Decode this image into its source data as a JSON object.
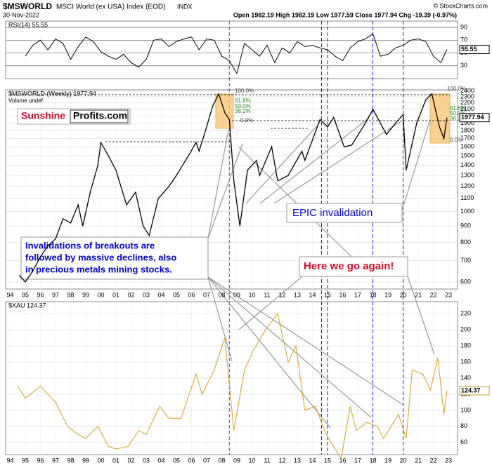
{
  "header": {
    "symbol": "$MSWORLD",
    "name": "MSCI World (ex USA) Index (EOD)",
    "exchange": "INDX",
    "date": "30-Nov-2022",
    "quote": "Open 1982.19 High 1982.19 Low 1977.59 Close 1977.94 Chg -19.39 (-0.97%)",
    "source": "© StockCharts.com"
  },
  "logo": {
    "left": "Sunshine",
    "right": "Profits.com"
  },
  "notes": {
    "invalidations": [
      "Invalidations of breakouts are",
      "followed by massive declines, also",
      "in precious metals mining stocks."
    ],
    "epic": "EPIC invalidation",
    "again": "Here we go again!",
    "fib_labels": [
      "100.0%",
      "61.8%",
      "50.0%",
      "38.2%",
      "0.0%"
    ]
  },
  "chart_data": [
    {
      "type": "line",
      "title": "RSI(14) 55.55",
      "color": "#000000",
      "xlim": [
        1993.7,
        2023.6
      ],
      "ylim": [
        10,
        100
      ],
      "yticks": [
        30,
        50,
        70,
        90
      ],
      "x": [
        1995.0,
        1995.5,
        1996.0,
        1996.5,
        1997.0,
        1997.5,
        1998.0,
        1998.5,
        1999.0,
        1999.5,
        2000.0,
        2000.5,
        2001.0,
        2001.5,
        2002.0,
        2002.5,
        2003.0,
        2003.5,
        2004.0,
        2004.5,
        2005.0,
        2005.5,
        2006.0,
        2006.5,
        2007.0,
        2007.5,
        2008.0,
        2008.5,
        2009.0,
        2009.5,
        2010.0,
        2010.5,
        2011.0,
        2011.5,
        2012.0,
        2012.5,
        2013.0,
        2013.5,
        2014.0,
        2014.5,
        2015.0,
        2015.5,
        2016.0,
        2016.5,
        2017.0,
        2017.5,
        2018.0,
        2018.5,
        2019.0,
        2019.5,
        2020.0,
        2020.5,
        2021.0,
        2021.5,
        2022.0,
        2022.5,
        2022.9
      ],
      "values": [
        45,
        62,
        70,
        55,
        72,
        65,
        40,
        60,
        75,
        68,
        52,
        45,
        40,
        48,
        35,
        28,
        40,
        70,
        72,
        60,
        68,
        72,
        75,
        55,
        72,
        70,
        45,
        38,
        18,
        65,
        55,
        45,
        62,
        35,
        58,
        50,
        68,
        60,
        62,
        58,
        55,
        45,
        38,
        58,
        68,
        72,
        80,
        45,
        48,
        58,
        62,
        70,
        72,
        68,
        45,
        35,
        55.55
      ]
    },
    {
      "type": "line",
      "title": "$MSWORLD (Weekly) 1977.94",
      "subtitle": "Volume undef",
      "color": "#000000",
      "log_scale": true,
      "xlim": [
        1993.7,
        2023.6
      ],
      "ylim": [
        570,
        2420
      ],
      "yticks": [
        600,
        700,
        800,
        900,
        1000,
        1100,
        1200,
        1300,
        1400,
        1500,
        1600,
        1700,
        1800,
        1900,
        2000,
        2100,
        2200,
        2300,
        2400
      ],
      "xticks": [
        {
          "value": 1994,
          "label": "94"
        },
        {
          "value": 1995,
          "label": "95"
        },
        {
          "value": 1996,
          "label": "96"
        },
        {
          "value": 1997,
          "label": "97"
        },
        {
          "value": 1998,
          "label": "98"
        },
        {
          "value": 1999,
          "label": "99"
        },
        {
          "value": 2000,
          "label": "00"
        },
        {
          "value": 2001,
          "label": "01"
        },
        {
          "value": 2002,
          "label": "02"
        },
        {
          "value": 2003,
          "label": "03"
        },
        {
          "value": 2004,
          "label": "04"
        },
        {
          "value": 2005,
          "label": "05"
        },
        {
          "value": 2006,
          "label": "06"
        },
        {
          "value": 2007,
          "label": "07"
        },
        {
          "value": 2008,
          "label": "08"
        },
        {
          "value": 2009,
          "label": "09"
        },
        {
          "value": 2010,
          "label": "10"
        },
        {
          "value": 2011,
          "label": "11"
        },
        {
          "value": 2012,
          "label": "12"
        },
        {
          "value": 2013,
          "label": "13"
        },
        {
          "value": 2014,
          "label": "14"
        },
        {
          "value": 2015,
          "label": "15"
        },
        {
          "value": 2016,
          "label": "16"
        },
        {
          "value": 2017,
          "label": "17"
        },
        {
          "value": 2018,
          "label": "18"
        },
        {
          "value": 2019,
          "label": "19"
        },
        {
          "value": 2020,
          "label": "20"
        },
        {
          "value": 2021,
          "label": "21"
        },
        {
          "value": 2022,
          "label": "22"
        },
        {
          "value": 2023,
          "label": "23"
        }
      ],
      "event_lines": [
        {
          "x": 2008.5,
          "color": "#9900cc"
        },
        {
          "x": 2014.6,
          "color": "#0000cc"
        },
        {
          "x": 2015.0,
          "color": "#0000cc"
        },
        {
          "x": 2018.0,
          "color": "#0000cc"
        },
        {
          "x": 2020.0,
          "color": "#0000cc"
        }
      ],
      "x": [
        1994.6,
        1995.0,
        1995.5,
        1996.0,
        1996.5,
        1997.0,
        1997.5,
        1998.0,
        1998.5,
        1998.8,
        1999.3,
        1999.8,
        2000.0,
        2000.5,
        2001.0,
        2001.7,
        2002.3,
        2002.8,
        2003.2,
        2003.8,
        2004.5,
        2005.0,
        2005.8,
        2006.3,
        2006.5,
        2007.0,
        2007.4,
        2007.8,
        2008.2,
        2008.5,
        2008.8,
        2009.2,
        2009.7,
        2010.3,
        2010.5,
        2011.3,
        2011.7,
        2012.4,
        2013.3,
        2013.5,
        2014.5,
        2015.0,
        2015.4,
        2016.1,
        2016.6,
        2017.5,
        2018.0,
        2018.9,
        2019.5,
        2020.0,
        2020.2,
        2020.9,
        2021.5,
        2021.9,
        2022.4,
        2022.7,
        2022.9
      ],
      "values": [
        630,
        600,
        650,
        720,
        780,
        820,
        950,
        920,
        1050,
        900,
        1150,
        1400,
        1650,
        1500,
        1350,
        1050,
        1150,
        900,
        840,
        1100,
        1200,
        1300,
        1500,
        1650,
        1550,
        1850,
        2150,
        2350,
        2050,
        1950,
        1250,
        900,
        1350,
        1450,
        1300,
        1600,
        1250,
        1300,
        1550,
        1450,
        1950,
        1850,
        1980,
        1600,
        1620,
        1900,
        2100,
        1750,
        1900,
        2020,
        1350,
        1900,
        2250,
        2350,
        1850,
        1700,
        1977.94
      ]
    },
    {
      "type": "line",
      "title": "$XAU 124.37",
      "color": "#d4a020",
      "xlim": [
        1993.7,
        2023.6
      ],
      "ylim": [
        45,
        235
      ],
      "yticks": [
        60,
        80,
        100,
        120,
        140,
        160,
        180,
        200,
        220
      ],
      "xticks": [
        {
          "value": 1994,
          "label": "94"
        },
        {
          "value": 1995,
          "label": "95"
        },
        {
          "value": 1996,
          "label": "96"
        },
        {
          "value": 1997,
          "label": "97"
        },
        {
          "value": 1998,
          "label": "98"
        },
        {
          "value": 1999,
          "label": "99"
        },
        {
          "value": 2000,
          "label": "00"
        },
        {
          "value": 2001,
          "label": "01"
        },
        {
          "value": 2002,
          "label": "02"
        },
        {
          "value": 2003,
          "label": "03"
        },
        {
          "value": 2004,
          "label": "04"
        },
        {
          "value": 2005,
          "label": "05"
        },
        {
          "value": 2006,
          "label": "06"
        },
        {
          "value": 2007,
          "label": "07"
        },
        {
          "value": 2008,
          "label": "08"
        },
        {
          "value": 2009,
          "label": "09"
        },
        {
          "value": 2010,
          "label": "10"
        },
        {
          "value": 2011,
          "label": "11"
        },
        {
          "value": 2012,
          "label": "12"
        },
        {
          "value": 2013,
          "label": "13"
        },
        {
          "value": 2014,
          "label": "14"
        },
        {
          "value": 2015,
          "label": "15"
        },
        {
          "value": 2016,
          "label": "16"
        },
        {
          "value": 2017,
          "label": "17"
        },
        {
          "value": 2018,
          "label": "18"
        },
        {
          "value": 2019,
          "label": "19"
        },
        {
          "value": 2020,
          "label": "20"
        },
        {
          "value": 2021,
          "label": "21"
        },
        {
          "value": 2022,
          "label": "22"
        },
        {
          "value": 2023,
          "label": "23"
        }
      ],
      "x": [
        1994.5,
        1995.0,
        1996.0,
        1996.5,
        1997.0,
        1997.8,
        1998.5,
        1999.0,
        1999.8,
        2000.5,
        2001.0,
        2001.8,
        2002.5,
        2003.0,
        2003.9,
        2004.5,
        2005.3,
        2006.3,
        2006.7,
        2007.5,
        2008.2,
        2008.8,
        2009.5,
        2010.1,
        2010.9,
        2011.7,
        2012.4,
        2012.9,
        2013.5,
        2014.2,
        2014.9,
        2015.9,
        2016.5,
        2016.9,
        2017.6,
        2018.3,
        2018.7,
        2019.7,
        2020.2,
        2020.6,
        2021.3,
        2021.8,
        2022.3,
        2022.7,
        2022.9
      ],
      "values": [
        130,
        115,
        130,
        120,
        110,
        80,
        70,
        65,
        80,
        55,
        52,
        55,
        75,
        70,
        105,
        90,
        90,
        145,
        120,
        150,
        190,
        75,
        150,
        175,
        200,
        220,
        160,
        180,
        100,
        105,
        70,
        40,
        105,
        75,
        85,
        80,
        65,
        95,
        65,
        150,
        145,
        125,
        165,
        95,
        124.37
      ]
    }
  ]
}
